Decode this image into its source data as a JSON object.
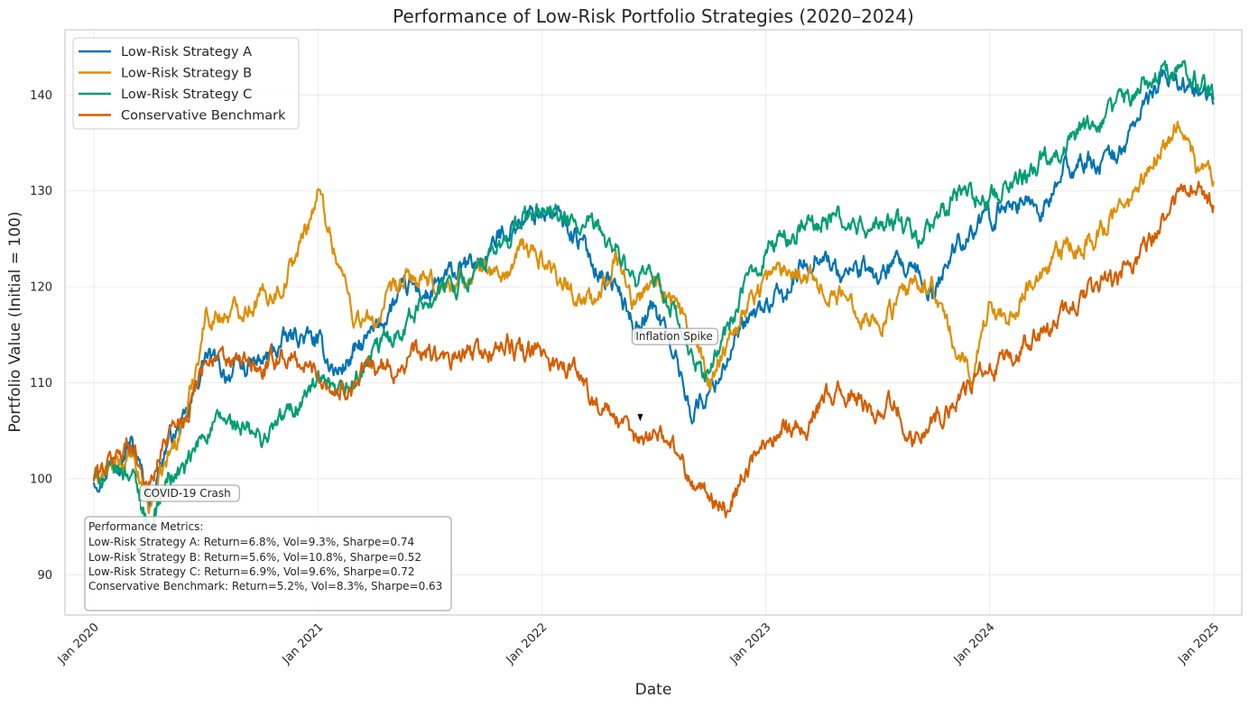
{
  "chart_data": {
    "type": "line",
    "title": "Performance of Low-Risk Portfolio Strategies (2020–2024)",
    "xlabel": "Date",
    "ylabel": "Portfolio Value (Initial = 100)",
    "xlim": [
      "2019-11-15",
      "2025-02-15"
    ],
    "ylim": [
      85.8,
      146.8
    ],
    "x_ticks": [
      {
        "date": "2020-01-01",
        "label": "Jan 2020"
      },
      {
        "date": "2021-01-01",
        "label": "Jan 2021"
      },
      {
        "date": "2022-01-01",
        "label": "Jan 2022"
      },
      {
        "date": "2023-01-01",
        "label": "Jan 2023"
      },
      {
        "date": "2024-01-01",
        "label": "Jan 2024"
      },
      {
        "date": "2025-01-01",
        "label": "Jan 2025"
      }
    ],
    "y_ticks": [
      90,
      100,
      110,
      120,
      130,
      140
    ],
    "grid": true,
    "legend_position": "top-left",
    "dates": [
      "2020-01-01",
      "2020-02-01",
      "2020-03-01",
      "2020-04-01",
      "2020-05-01",
      "2020-06-01",
      "2020-07-01",
      "2020-08-01",
      "2020-09-01",
      "2020-10-01",
      "2020-11-01",
      "2020-12-01",
      "2021-01-01",
      "2021-02-01",
      "2021-03-01",
      "2021-04-01",
      "2021-05-01",
      "2021-06-01",
      "2021-07-01",
      "2021-08-01",
      "2021-09-01",
      "2021-10-01",
      "2021-11-01",
      "2021-12-01",
      "2022-01-01",
      "2022-02-01",
      "2022-03-01",
      "2022-04-01",
      "2022-05-01",
      "2022-06-01",
      "2022-07-01",
      "2022-08-01",
      "2022-09-01",
      "2022-10-01",
      "2022-11-01",
      "2022-12-01",
      "2023-01-01",
      "2023-02-01",
      "2023-03-01",
      "2023-04-01",
      "2023-05-01",
      "2023-06-01",
      "2023-07-01",
      "2023-08-01",
      "2023-09-01",
      "2023-10-01",
      "2023-11-01",
      "2023-12-01",
      "2024-01-01",
      "2024-02-01",
      "2024-03-01",
      "2024-04-01",
      "2024-05-01",
      "2024-06-01",
      "2024-07-01",
      "2024-08-01",
      "2024-09-01",
      "2024-10-01",
      "2024-11-01",
      "2024-12-01",
      "2024-12-31"
    ],
    "series": [
      {
        "name": "Low-Risk Strategy A",
        "color": "#0173b2",
        "values": [
          100,
          102,
          104,
          98,
          104,
          106,
          113,
          111,
          111.5,
          112,
          114,
          115,
          114,
          111,
          113,
          115,
          118,
          120,
          119,
          121,
          122,
          123,
          126,
          127,
          128,
          127,
          125,
          122,
          120,
          116,
          118,
          114,
          107,
          109,
          113,
          116,
          118,
          119,
          122,
          124,
          121,
          122,
          121,
          122,
          121,
          119,
          124,
          126,
          127,
          129,
          129,
          128,
          132,
          133,
          133,
          134,
          138,
          141,
          142,
          140,
          139
        ]
      },
      {
        "name": "Low-Risk Strategy B",
        "color": "#de8f05",
        "values": [
          100,
          101,
          102,
          97,
          102,
          107,
          117,
          117,
          118,
          119,
          120,
          124,
          130,
          123,
          117,
          116,
          119,
          121,
          120,
          120,
          121,
          122,
          121,
          124,
          123,
          121,
          119,
          118,
          124,
          118,
          121,
          119,
          115,
          110,
          115,
          118,
          121,
          122,
          122,
          120,
          119,
          118,
          116,
          118,
          120,
          120,
          114,
          111,
          118,
          117,
          120,
          121,
          124,
          124,
          126,
          128,
          130,
          134,
          137,
          133,
          131
        ]
      },
      {
        "name": "Low-Risk Strategy C",
        "color": "#029e73",
        "values": [
          100,
          100.5,
          101,
          95,
          100,
          101,
          105,
          106,
          105,
          104,
          106,
          108,
          110,
          108,
          110,
          113,
          115,
          117,
          119,
          120,
          121,
          122,
          125,
          127,
          128,
          127,
          126,
          126,
          124,
          120,
          121,
          118,
          112,
          111,
          116,
          120,
          124,
          125,
          126,
          127,
          127,
          126,
          126,
          127,
          125,
          126,
          129,
          130,
          129,
          131,
          132,
          134,
          135,
          136,
          137,
          139,
          141,
          142,
          143,
          142,
          139.5
        ]
      },
      {
        "name": "Conservative Benchmark",
        "color": "#d55e00",
        "values": [
          100,
          102,
          104,
          99,
          105,
          107,
          113,
          112,
          112,
          111,
          113,
          112,
          111,
          109,
          110,
          112,
          111,
          113,
          113,
          112,
          113,
          113,
          114,
          113,
          113,
          112,
          111,
          108,
          106,
          104,
          105,
          104,
          100,
          98,
          97,
          101,
          104,
          106,
          105,
          108,
          109,
          108,
          107,
          108,
          104,
          106,
          108,
          110,
          111,
          112,
          114,
          115,
          117,
          119,
          120,
          121,
          123,
          126,
          129,
          131,
          128.5
        ]
      }
    ],
    "annotations": [
      {
        "label": "COVID-19 Crash",
        "date": "2020-03-15",
        "value": 92
      },
      {
        "label": "Inflation Spike",
        "date": "2022-06-10",
        "value": 106
      }
    ],
    "metrics_box": {
      "heading": "Performance Metrics:",
      "lines": [
        "Low-Risk Strategy A: Return=6.8%, Vol=9.3%, Sharpe=0.74",
        "Low-Risk Strategy B: Return=5.6%, Vol=10.8%, Sharpe=0.52",
        "Low-Risk Strategy C: Return=6.9%, Vol=9.6%, Sharpe=0.72",
        "Conservative Benchmark: Return=5.2%, Vol=8.3%, Sharpe=0.63"
      ]
    }
  }
}
